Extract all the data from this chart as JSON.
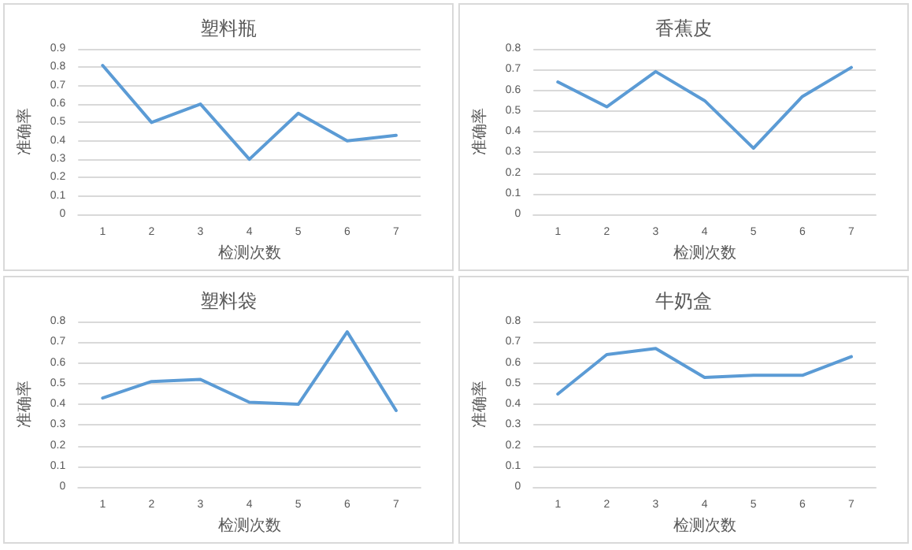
{
  "chart_data": [
    {
      "type": "line",
      "title": "塑料瓶",
      "xlabel": "检测次数",
      "ylabel": "准确率",
      "categories": [
        "1",
        "2",
        "3",
        "4",
        "5",
        "6",
        "7"
      ],
      "series": [
        {
          "color": "#5b9bd5",
          "values": [
            0.81,
            0.5,
            0.6,
            0.3,
            0.55,
            0.4,
            0.43
          ]
        }
      ],
      "ylim": [
        0,
        0.9
      ],
      "yticks": [
        0,
        0.1,
        0.2,
        0.3,
        0.4,
        0.5,
        0.6,
        0.7,
        0.8,
        0.9
      ],
      "grid": "y",
      "marker": "none",
      "line_style": "solid"
    },
    {
      "type": "line",
      "title": "香蕉皮",
      "xlabel": "检测次数",
      "ylabel": "准确率",
      "categories": [
        "1",
        "2",
        "3",
        "4",
        "5",
        "6",
        "7"
      ],
      "series": [
        {
          "color": "#5b9bd5",
          "values": [
            0.64,
            0.52,
            0.69,
            0.55,
            0.32,
            0.57,
            0.71
          ]
        }
      ],
      "ylim": [
        0,
        0.8
      ],
      "yticks": [
        0,
        0.1,
        0.2,
        0.3,
        0.4,
        0.5,
        0.6,
        0.7,
        0.8
      ],
      "grid": "y",
      "marker": "none",
      "line_style": "solid"
    },
    {
      "type": "line",
      "title": "塑料袋",
      "xlabel": "检测次数",
      "ylabel": "准确率",
      "categories": [
        "1",
        "2",
        "3",
        "4",
        "5",
        "6",
        "7"
      ],
      "series": [
        {
          "color": "#5b9bd5",
          "values": [
            0.43,
            0.51,
            0.52,
            0.41,
            0.4,
            0.75,
            0.37
          ]
        }
      ],
      "ylim": [
        0,
        0.8
      ],
      "yticks": [
        0,
        0.1,
        0.2,
        0.3,
        0.4,
        0.5,
        0.6,
        0.7,
        0.8
      ],
      "grid": "y",
      "marker": "none",
      "line_style": "solid"
    },
    {
      "type": "line",
      "title": "牛奶盒",
      "xlabel": "检测次数",
      "ylabel": "准确率",
      "categories": [
        "1",
        "2",
        "3",
        "4",
        "5",
        "6",
        "7"
      ],
      "series": [
        {
          "color": "#5b9bd5",
          "values": [
            0.45,
            0.64,
            0.67,
            0.53,
            0.54,
            0.54,
            0.63
          ]
        }
      ],
      "ylim": [
        0,
        0.8
      ],
      "yticks": [
        0,
        0.1,
        0.2,
        0.3,
        0.4,
        0.5,
        0.6,
        0.7,
        0.8
      ],
      "grid": "y",
      "marker": "none",
      "line_style": "solid"
    }
  ]
}
